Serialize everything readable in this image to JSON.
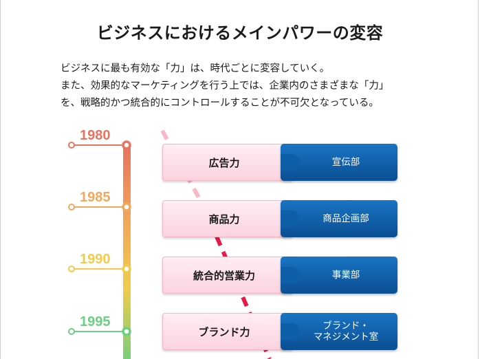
{
  "title": "ビジネスにおけるメインパワーの変容",
  "intro": [
    "ビジネスに最も有効な「力」は、時代ごとに変容していく。",
    "また、効果的なマーケティングを行う上では、企業内のさまざまな「力」",
    "を、戦略的かつ統合的にコントロールすることが不可欠となっている。"
  ],
  "timeline": [
    {
      "year": "1980",
      "color": "#e8735f"
    },
    {
      "year": "1985",
      "color": "#f2a85a"
    },
    {
      "year": "1990",
      "color": "#f0cc4a"
    },
    {
      "year": "1995",
      "color": "#6dcf80"
    }
  ],
  "rows": [
    {
      "power": "広告力",
      "dept": "宣伝部"
    },
    {
      "power": "商品力",
      "dept": "商品企画部"
    },
    {
      "power": "統合的営業力",
      "dept": "事業部"
    },
    {
      "power": "ブランド力",
      "dept": "ブランド・\nマネジメント室"
    }
  ],
  "colors": {
    "dashed_line": "#e8194a",
    "power_box": "#fbd3df",
    "dept_box": "#0a5aa8"
  }
}
